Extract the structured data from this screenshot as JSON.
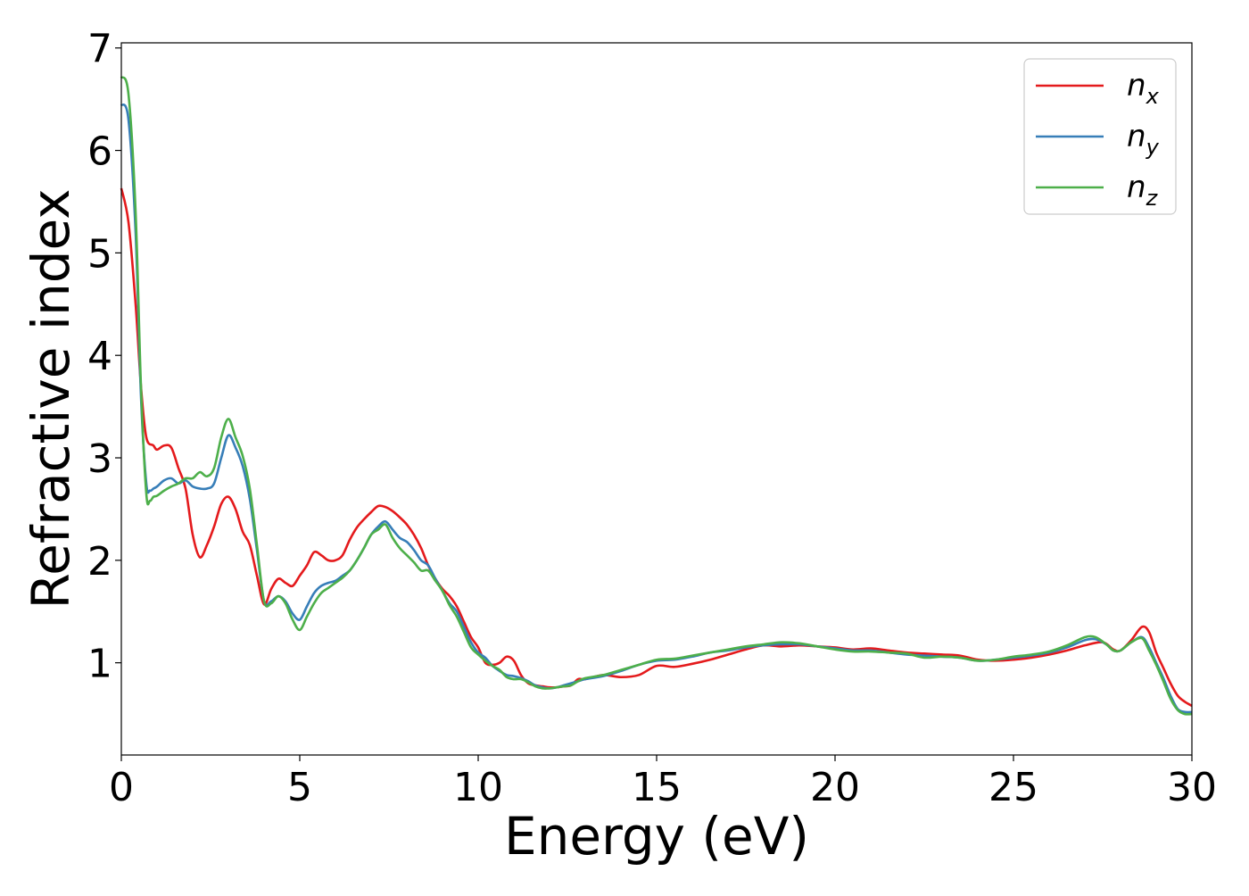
{
  "chart_data": {
    "type": "line",
    "title": "",
    "xlabel": "Energy (eV)",
    "ylabel": "Refractive index",
    "xlim": [
      0,
      30
    ],
    "ylim": [
      0.1,
      7.05
    ],
    "xticks": [
      0,
      5,
      10,
      15,
      20,
      25,
      30
    ],
    "yticks": [
      1,
      2,
      3,
      4,
      5,
      6,
      7
    ],
    "grid": false,
    "legend_position": "top-right",
    "series": [
      {
        "name": "n_x",
        "base": "n",
        "sub": "x",
        "color": "#e41a1c",
        "x": [
          0.0,
          0.2,
          0.4,
          0.55,
          0.7,
          0.9,
          1.0,
          1.2,
          1.4,
          1.6,
          1.8,
          2.0,
          2.2,
          2.4,
          2.6,
          2.8,
          3.0,
          3.2,
          3.4,
          3.6,
          3.8,
          4.0,
          4.2,
          4.4,
          4.6,
          4.8,
          5.0,
          5.2,
          5.4,
          5.6,
          5.8,
          6.0,
          6.2,
          6.4,
          6.6,
          6.8,
          7.0,
          7.2,
          7.4,
          7.6,
          7.8,
          8.0,
          8.2,
          8.4,
          8.6,
          8.8,
          9.0,
          9.2,
          9.4,
          9.6,
          9.8,
          10.0,
          10.2,
          10.4,
          10.6,
          10.8,
          11.0,
          11.2,
          11.4,
          11.6,
          11.8,
          12.0,
          12.2,
          12.4,
          12.6,
          12.8,
          13.0,
          13.5,
          14.0,
          14.5,
          15.0,
          15.5,
          16.0,
          16.5,
          17.0,
          17.5,
          18.0,
          18.5,
          19.0,
          19.5,
          20.0,
          20.5,
          21.0,
          21.5,
          22.0,
          22.5,
          23.0,
          23.5,
          24.0,
          24.5,
          25.0,
          25.5,
          26.0,
          26.5,
          27.0,
          27.5,
          27.8,
          28.0,
          28.3,
          28.6,
          28.8,
          29.0,
          29.2,
          29.4,
          29.6,
          29.8,
          30.0
        ],
        "y": [
          5.63,
          5.3,
          4.5,
          3.7,
          3.2,
          3.12,
          3.08,
          3.12,
          3.1,
          2.9,
          2.7,
          2.25,
          2.03,
          2.15,
          2.33,
          2.55,
          2.62,
          2.5,
          2.28,
          2.15,
          1.85,
          1.57,
          1.72,
          1.82,
          1.78,
          1.75,
          1.85,
          1.95,
          2.08,
          2.05,
          2.0,
          2.0,
          2.05,
          2.2,
          2.32,
          2.4,
          2.47,
          2.53,
          2.52,
          2.48,
          2.42,
          2.35,
          2.25,
          2.12,
          1.95,
          1.82,
          1.72,
          1.65,
          1.55,
          1.4,
          1.25,
          1.15,
          1.0,
          0.98,
          1.0,
          1.06,
          1.02,
          0.88,
          0.8,
          0.78,
          0.77,
          0.76,
          0.76,
          0.77,
          0.78,
          0.84,
          0.84,
          0.88,
          0.86,
          0.88,
          0.97,
          0.96,
          0.99,
          1.03,
          1.08,
          1.13,
          1.17,
          1.16,
          1.17,
          1.16,
          1.15,
          1.13,
          1.14,
          1.12,
          1.1,
          1.09,
          1.08,
          1.07,
          1.03,
          1.02,
          1.03,
          1.05,
          1.08,
          1.12,
          1.17,
          1.2,
          1.13,
          1.12,
          1.22,
          1.35,
          1.3,
          1.1,
          0.95,
          0.8,
          0.68,
          0.62,
          0.58
        ]
      },
      {
        "name": "n_y",
        "base": "n",
        "sub": "y",
        "color": "#377eb8",
        "x": [
          0.0,
          0.2,
          0.4,
          0.55,
          0.7,
          0.8,
          0.9,
          1.0,
          1.2,
          1.4,
          1.6,
          1.8,
          2.0,
          2.2,
          2.4,
          2.6,
          2.8,
          3.0,
          3.2,
          3.4,
          3.6,
          3.8,
          4.0,
          4.2,
          4.4,
          4.6,
          4.8,
          5.0,
          5.2,
          5.4,
          5.6,
          5.8,
          6.0,
          6.2,
          6.4,
          6.6,
          6.8,
          7.0,
          7.2,
          7.4,
          7.6,
          7.8,
          8.0,
          8.2,
          8.4,
          8.6,
          8.8,
          9.0,
          9.2,
          9.4,
          9.6,
          9.8,
          10.0,
          10.2,
          10.4,
          10.6,
          10.8,
          11.0,
          11.2,
          11.4,
          11.6,
          11.8,
          12.0,
          12.2,
          12.4,
          12.6,
          12.8,
          13.0,
          13.5,
          14.0,
          14.5,
          15.0,
          15.5,
          16.0,
          16.5,
          17.0,
          17.5,
          18.0,
          18.5,
          19.0,
          19.5,
          20.0,
          20.5,
          21.0,
          21.5,
          22.0,
          22.5,
          23.0,
          23.5,
          24.0,
          24.5,
          25.0,
          25.5,
          26.0,
          26.5,
          27.0,
          27.3,
          27.6,
          27.8,
          28.0,
          28.3,
          28.6,
          28.8,
          29.0,
          29.2,
          29.4,
          29.6,
          29.8,
          30.0
        ],
        "y": [
          6.45,
          6.3,
          5.2,
          3.6,
          2.75,
          2.68,
          2.7,
          2.72,
          2.78,
          2.8,
          2.75,
          2.78,
          2.72,
          2.7,
          2.7,
          2.75,
          3.0,
          3.22,
          3.1,
          2.92,
          2.6,
          2.1,
          1.6,
          1.6,
          1.65,
          1.6,
          1.48,
          1.42,
          1.55,
          1.68,
          1.75,
          1.78,
          1.8,
          1.85,
          1.9,
          2.0,
          2.12,
          2.25,
          2.33,
          2.38,
          2.3,
          2.22,
          2.18,
          2.1,
          2.0,
          1.95,
          1.82,
          1.7,
          1.58,
          1.5,
          1.35,
          1.2,
          1.1,
          1.05,
          0.97,
          0.92,
          0.88,
          0.87,
          0.85,
          0.82,
          0.78,
          0.76,
          0.75,
          0.76,
          0.78,
          0.8,
          0.82,
          0.84,
          0.87,
          0.92,
          0.98,
          1.02,
          1.03,
          1.06,
          1.1,
          1.12,
          1.15,
          1.17,
          1.18,
          1.18,
          1.16,
          1.14,
          1.12,
          1.12,
          1.1,
          1.08,
          1.07,
          1.06,
          1.05,
          1.02,
          1.03,
          1.05,
          1.07,
          1.1,
          1.15,
          1.22,
          1.23,
          1.18,
          1.12,
          1.12,
          1.2,
          1.25,
          1.15,
          1.0,
          0.85,
          0.68,
          0.55,
          0.52,
          0.52
        ]
      },
      {
        "name": "n_z",
        "base": "n",
        "sub": "z",
        "color": "#4daf4a",
        "x": [
          0.0,
          0.2,
          0.4,
          0.55,
          0.7,
          0.8,
          0.9,
          1.0,
          1.2,
          1.4,
          1.6,
          1.8,
          2.0,
          2.2,
          2.4,
          2.6,
          2.8,
          3.0,
          3.2,
          3.4,
          3.6,
          3.8,
          4.0,
          4.2,
          4.4,
          4.6,
          4.8,
          5.0,
          5.2,
          5.4,
          5.6,
          5.8,
          6.0,
          6.2,
          6.4,
          6.6,
          6.8,
          7.0,
          7.2,
          7.4,
          7.6,
          7.8,
          8.0,
          8.2,
          8.4,
          8.6,
          8.8,
          9.0,
          9.2,
          9.4,
          9.6,
          9.8,
          10.0,
          10.2,
          10.4,
          10.6,
          10.8,
          11.0,
          11.2,
          11.4,
          11.6,
          11.8,
          12.0,
          12.2,
          12.4,
          12.6,
          12.8,
          13.0,
          13.5,
          14.0,
          14.5,
          15.0,
          15.5,
          16.0,
          16.5,
          17.0,
          17.5,
          18.0,
          18.5,
          19.0,
          19.5,
          20.0,
          20.5,
          21.0,
          21.5,
          22.0,
          22.5,
          23.0,
          23.5,
          24.0,
          24.5,
          25.0,
          25.5,
          26.0,
          26.5,
          27.0,
          27.3,
          27.6,
          27.8,
          28.0,
          28.3,
          28.6,
          28.8,
          29.0,
          29.2,
          29.4,
          29.6,
          29.8,
          30.0
        ],
        "y": [
          6.72,
          6.55,
          5.4,
          3.7,
          2.65,
          2.58,
          2.62,
          2.63,
          2.68,
          2.72,
          2.75,
          2.8,
          2.8,
          2.86,
          2.82,
          2.9,
          3.2,
          3.38,
          3.2,
          3.02,
          2.7,
          2.15,
          1.6,
          1.58,
          1.65,
          1.58,
          1.42,
          1.32,
          1.45,
          1.58,
          1.68,
          1.73,
          1.78,
          1.83,
          1.9,
          2.0,
          2.12,
          2.25,
          2.3,
          2.35,
          2.22,
          2.12,
          2.05,
          1.98,
          1.9,
          1.9,
          1.8,
          1.7,
          1.56,
          1.45,
          1.3,
          1.15,
          1.08,
          1.02,
          0.97,
          0.93,
          0.86,
          0.84,
          0.84,
          0.81,
          0.77,
          0.75,
          0.75,
          0.76,
          0.77,
          0.78,
          0.82,
          0.85,
          0.88,
          0.93,
          0.98,
          1.03,
          1.04,
          1.07,
          1.1,
          1.13,
          1.16,
          1.18,
          1.2,
          1.19,
          1.16,
          1.13,
          1.11,
          1.11,
          1.1,
          1.09,
          1.05,
          1.06,
          1.05,
          1.02,
          1.03,
          1.06,
          1.08,
          1.11,
          1.17,
          1.25,
          1.25,
          1.18,
          1.12,
          1.12,
          1.2,
          1.24,
          1.12,
          0.98,
          0.82,
          0.65,
          0.54,
          0.5,
          0.5
        ]
      }
    ]
  }
}
